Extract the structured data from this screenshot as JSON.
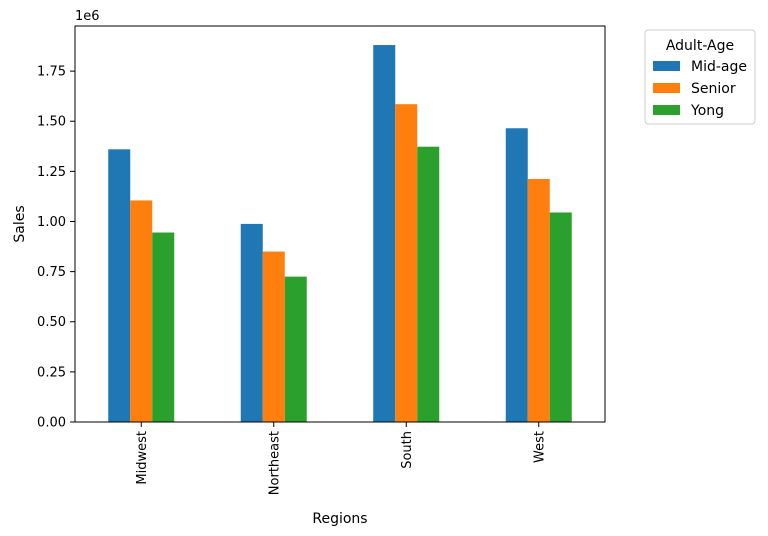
{
  "chart_data": {
    "type": "bar",
    "title": "",
    "xlabel": "Regions",
    "ylabel": "Sales",
    "y_offset_label": "1e6",
    "categories": [
      "Midwest",
      "Northeast",
      "South",
      "West"
    ],
    "series": [
      {
        "name": "Mid-age",
        "color": "#1f77b4",
        "values": [
          1360000,
          988000,
          1880000,
          1465000
        ]
      },
      {
        "name": "Senior",
        "color": "#ff7f0e",
        "values": [
          1105000,
          850000,
          1585000,
          1212000
        ]
      },
      {
        "name": "Yong",
        "color": "#2ca02c",
        "values": [
          945000,
          725000,
          1373000,
          1045000
        ]
      }
    ],
    "ylim": [
      0,
      1975000
    ],
    "yticks": [
      0,
      250000,
      500000,
      750000,
      1000000,
      1250000,
      1500000,
      1750000
    ],
    "ytick_labels": [
      "0.00",
      "0.25",
      "0.50",
      "0.75",
      "1.00",
      "1.25",
      "1.50",
      "1.75"
    ],
    "grid": false,
    "legend": {
      "title": "Adult-Age",
      "placement": "outside-top-right"
    }
  }
}
